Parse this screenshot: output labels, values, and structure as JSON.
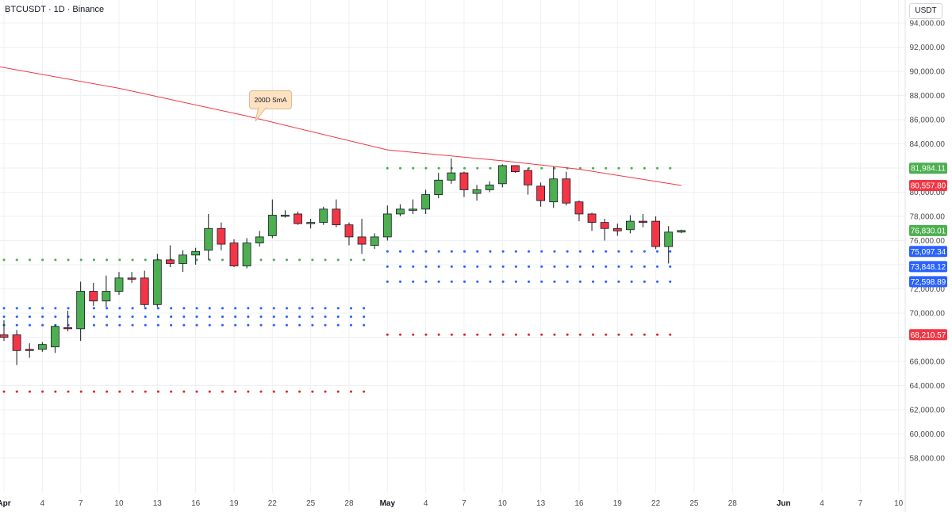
{
  "header": {
    "symbol": "BTCUSDT",
    "interval": "1D",
    "exchange": "Binance",
    "separator": "·"
  },
  "currency_label": "USDT",
  "annotation": {
    "text": "200D SmA"
  },
  "colors": {
    "up": "#4caf50",
    "down": "#f23645",
    "sma": "#f23645",
    "green_dots": "#4caf50",
    "blue_dots": "#2962ff",
    "red_dots": "#d32f2f",
    "grid": "#eef0f3",
    "axis_text": "#4a4a4a"
  },
  "chart_data": {
    "type": "candlestick",
    "y_axis": {
      "min": 57000,
      "max": 95000,
      "ticks": [
        58000,
        60000,
        62000,
        64000,
        66000,
        68000,
        70000,
        72000,
        74000,
        76000,
        78000,
        80000,
        82000,
        84000,
        86000,
        88000,
        90000,
        92000,
        94000
      ],
      "tick_labels": [
        "58,000.00",
        "60,000.00",
        "62,000.00",
        "64,000.00",
        "66,000.00",
        "68,000.00",
        "70,000.00",
        "72,000.00",
        "74,000.00",
        "76,000.00",
        "78,000.00",
        "80,000.00",
        "82,000.00",
        "84,000.00",
        "86,000.00",
        "88,000.00",
        "90,000.00",
        "92,000.00",
        "94,000.00"
      ]
    },
    "x_axis": {
      "start_date": "2025-04-01",
      "ticks": [
        {
          "date": "2025-04-01",
          "label": "Apr",
          "bold": true
        },
        {
          "date": "2025-04-04",
          "label": "4"
        },
        {
          "date": "2025-04-07",
          "label": "7"
        },
        {
          "date": "2025-04-10",
          "label": "10"
        },
        {
          "date": "2025-04-13",
          "label": "13"
        },
        {
          "date": "2025-04-16",
          "label": "16"
        },
        {
          "date": "2025-04-19",
          "label": "19"
        },
        {
          "date": "2025-04-22",
          "label": "22"
        },
        {
          "date": "2025-04-25",
          "label": "25"
        },
        {
          "date": "2025-04-28",
          "label": "28"
        },
        {
          "date": "2025-05-01",
          "label": "May",
          "bold": true
        },
        {
          "date": "2025-05-04",
          "label": "4"
        },
        {
          "date": "2025-05-07",
          "label": "7"
        },
        {
          "date": "2025-05-10",
          "label": "10"
        },
        {
          "date": "2025-05-13",
          "label": "13"
        },
        {
          "date": "2025-05-16",
          "label": "16"
        },
        {
          "date": "2025-05-19",
          "label": "19"
        },
        {
          "date": "2025-05-22",
          "label": "22"
        },
        {
          "date": "2025-05-25",
          "label": "25"
        },
        {
          "date": "2025-05-28",
          "label": "28"
        },
        {
          "date": "2025-06-01",
          "label": "Jun",
          "bold": true
        },
        {
          "date": "2025-06-04",
          "label": "4"
        },
        {
          "date": "2025-06-07",
          "label": "7"
        },
        {
          "date": "2025-06-10",
          "label": "10"
        }
      ]
    },
    "candles": [
      {
        "date": "2025-04-01",
        "o": 68200,
        "h": 69400,
        "l": 67700,
        "c": 68000
      },
      {
        "date": "2025-04-02",
        "o": 68200,
        "h": 68600,
        "l": 65700,
        "c": 66900
      },
      {
        "date": "2025-04-03",
        "o": 67000,
        "h": 67500,
        "l": 66300,
        "c": 66900
      },
      {
        "date": "2025-04-04",
        "o": 67000,
        "h": 67600,
        "l": 66800,
        "c": 67400
      },
      {
        "date": "2025-04-05",
        "o": 67200,
        "h": 69000,
        "l": 66700,
        "c": 68900
      },
      {
        "date": "2025-04-06",
        "o": 68800,
        "h": 70200,
        "l": 68500,
        "c": 68700
      },
      {
        "date": "2025-04-07",
        "o": 68700,
        "h": 72600,
        "l": 67700,
        "c": 71800
      },
      {
        "date": "2025-04-08",
        "o": 71800,
        "h": 72500,
        "l": 70600,
        "c": 71000
      },
      {
        "date": "2025-04-09",
        "o": 71000,
        "h": 73100,
        "l": 70500,
        "c": 71800
      },
      {
        "date": "2025-04-10",
        "o": 71800,
        "h": 73400,
        "l": 71500,
        "c": 72900
      },
      {
        "date": "2025-04-11",
        "o": 72900,
        "h": 73400,
        "l": 72500,
        "c": 72800
      },
      {
        "date": "2025-04-12",
        "o": 72900,
        "h": 73500,
        "l": 70500,
        "c": 70700
      },
      {
        "date": "2025-04-13",
        "o": 70700,
        "h": 74900,
        "l": 70500,
        "c": 74400
      },
      {
        "date": "2025-04-14",
        "o": 74400,
        "h": 75600,
        "l": 73800,
        "c": 74100
      },
      {
        "date": "2025-04-15",
        "o": 74100,
        "h": 75200,
        "l": 73400,
        "c": 74800
      },
      {
        "date": "2025-04-16",
        "o": 74800,
        "h": 75400,
        "l": 74000,
        "c": 75100
      },
      {
        "date": "2025-04-17",
        "o": 75200,
        "h": 78200,
        "l": 74400,
        "c": 77000
      },
      {
        "date": "2025-04-18",
        "o": 77000,
        "h": 77500,
        "l": 75200,
        "c": 75700
      },
      {
        "date": "2025-04-19",
        "o": 75800,
        "h": 76100,
        "l": 73800,
        "c": 73900
      },
      {
        "date": "2025-04-20",
        "o": 73900,
        "h": 76200,
        "l": 73700,
        "c": 75800
      },
      {
        "date": "2025-04-21",
        "o": 75800,
        "h": 76800,
        "l": 75500,
        "c": 76300
      },
      {
        "date": "2025-04-22",
        "o": 76400,
        "h": 79400,
        "l": 76200,
        "c": 78100
      },
      {
        "date": "2025-04-23",
        "o": 78100,
        "h": 78500,
        "l": 77900,
        "c": 78100
      },
      {
        "date": "2025-04-24",
        "o": 78200,
        "h": 78400,
        "l": 77300,
        "c": 77400
      },
      {
        "date": "2025-04-25",
        "o": 77400,
        "h": 77800,
        "l": 77000,
        "c": 77500
      },
      {
        "date": "2025-04-26",
        "o": 77500,
        "h": 78800,
        "l": 77300,
        "c": 78600
      },
      {
        "date": "2025-04-27",
        "o": 78600,
        "h": 79400,
        "l": 77100,
        "c": 77300
      },
      {
        "date": "2025-04-28",
        "o": 77300,
        "h": 77500,
        "l": 75600,
        "c": 76300
      },
      {
        "date": "2025-04-29",
        "o": 76300,
        "h": 77800,
        "l": 74900,
        "c": 75700
      },
      {
        "date": "2025-04-30",
        "o": 75600,
        "h": 76600,
        "l": 75300,
        "c": 76300
      },
      {
        "date": "2025-05-01",
        "o": 76300,
        "h": 78900,
        "l": 76000,
        "c": 78200
      },
      {
        "date": "2025-05-02",
        "o": 78200,
        "h": 79000,
        "l": 78000,
        "c": 78600
      },
      {
        "date": "2025-05-03",
        "o": 78500,
        "h": 79400,
        "l": 78200,
        "c": 78600
      },
      {
        "date": "2025-05-04",
        "o": 78600,
        "h": 80200,
        "l": 78200,
        "c": 79800
      },
      {
        "date": "2025-05-05",
        "o": 79800,
        "h": 81600,
        "l": 79500,
        "c": 81000
      },
      {
        "date": "2025-05-06",
        "o": 81000,
        "h": 82800,
        "l": 80700,
        "c": 81600
      },
      {
        "date": "2025-05-07",
        "o": 81600,
        "h": 81700,
        "l": 79600,
        "c": 80200
      },
      {
        "date": "2025-05-08",
        "o": 79900,
        "h": 80600,
        "l": 79300,
        "c": 80200
      },
      {
        "date": "2025-05-09",
        "o": 80200,
        "h": 80900,
        "l": 80000,
        "c": 80600
      },
      {
        "date": "2025-05-10",
        "o": 80700,
        "h": 82300,
        "l": 80400,
        "c": 82200
      },
      {
        "date": "2025-05-11",
        "o": 82200,
        "h": 82200,
        "l": 81600,
        "c": 81700
      },
      {
        "date": "2025-05-12",
        "o": 81800,
        "h": 82000,
        "l": 79800,
        "c": 80600
      },
      {
        "date": "2025-05-13",
        "o": 80500,
        "h": 80800,
        "l": 78800,
        "c": 79300
      },
      {
        "date": "2025-05-14",
        "o": 79200,
        "h": 82100,
        "l": 78700,
        "c": 81100
      },
      {
        "date": "2025-05-15",
        "o": 81100,
        "h": 81700,
        "l": 78900,
        "c": 79100
      },
      {
        "date": "2025-05-16",
        "o": 79200,
        "h": 79300,
        "l": 77600,
        "c": 78200
      },
      {
        "date": "2025-05-17",
        "o": 78200,
        "h": 78300,
        "l": 76800,
        "c": 77500
      },
      {
        "date": "2025-05-18",
        "o": 77500,
        "h": 77800,
        "l": 76000,
        "c": 77000
      },
      {
        "date": "2025-05-19",
        "o": 77000,
        "h": 77400,
        "l": 76400,
        "c": 76800
      },
      {
        "date": "2025-05-20",
        "o": 76900,
        "h": 78100,
        "l": 76600,
        "c": 77600
      },
      {
        "date": "2025-05-21",
        "o": 77600,
        "h": 78200,
        "l": 77100,
        "c": 77500
      },
      {
        "date": "2025-05-22",
        "o": 77600,
        "h": 78000,
        "l": 75300,
        "c": 75500
      },
      {
        "date": "2025-05-23",
        "o": 75500,
        "h": 77200,
        "l": 74100,
        "c": 76700
      },
      {
        "date": "2025-05-24",
        "o": 76700,
        "h": 76900,
        "l": 76600,
        "c": 76830
      }
    ],
    "sma_200": {
      "label": "200D SmA",
      "points": [
        {
          "date": "2025-03-31",
          "v": 90500
        },
        {
          "date": "2025-04-10",
          "v": 88600
        },
        {
          "date": "2025-04-20",
          "v": 86300
        },
        {
          "date": "2025-05-01",
          "v": 83500
        },
        {
          "date": "2025-05-10",
          "v": 82600
        },
        {
          "date": "2025-05-16",
          "v": 81900
        },
        {
          "date": "2025-05-24",
          "v": 80560
        }
      ]
    },
    "level_lines": [
      {
        "kind": "green",
        "value": 74400,
        "from": "2025-04-01",
        "to": "2025-04-30"
      },
      {
        "kind": "blue",
        "value": 70400,
        "from": "2025-04-01",
        "to": "2025-04-30"
      },
      {
        "kind": "blue",
        "value": 69700,
        "from": "2025-04-01",
        "to": "2025-04-30"
      },
      {
        "kind": "blue",
        "value": 69000,
        "from": "2025-04-01",
        "to": "2025-04-30"
      },
      {
        "kind": "red",
        "value": 63500,
        "from": "2025-04-01",
        "to": "2025-04-30"
      },
      {
        "kind": "green",
        "value": 81984.11,
        "from": "2025-05-01",
        "to": "2025-05-24"
      },
      {
        "kind": "blue",
        "value": 75097.34,
        "from": "2025-05-01",
        "to": "2025-05-24"
      },
      {
        "kind": "blue",
        "value": 73848.12,
        "from": "2025-05-01",
        "to": "2025-05-24"
      },
      {
        "kind": "blue",
        "value": 72598.89,
        "from": "2025-05-01",
        "to": "2025-05-24"
      },
      {
        "kind": "red",
        "value": 68210.57,
        "from": "2025-05-01",
        "to": "2025-05-24"
      }
    ],
    "price_labels": [
      {
        "value": 81984.11,
        "text": "81,984.11",
        "color": "#4caf50"
      },
      {
        "value": 80557.8,
        "text": "80,557.80",
        "color": "#f23645"
      },
      {
        "value": 76830.01,
        "text": "76,830.01",
        "color": "#4caf50"
      },
      {
        "value": 75097.34,
        "text": "75,097.34",
        "color": "#2962ff"
      },
      {
        "value": 73848.12,
        "text": "73,848.12",
        "color": "#2962ff"
      },
      {
        "value": 72598.89,
        "text": "72,598.89",
        "color": "#2962ff"
      },
      {
        "value": 68210.57,
        "text": "68,210.57",
        "color": "#f23645"
      }
    ]
  }
}
